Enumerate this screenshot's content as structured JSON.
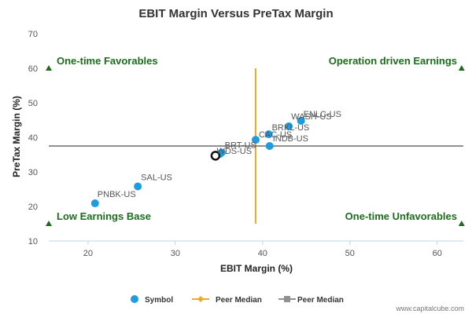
{
  "chart_data": {
    "type": "scatter",
    "title": "EBIT Margin Versus PreTax Margin",
    "xlabel": "EBIT Margin (%)",
    "ylabel": "PreTax Margin (%)",
    "xlim": [
      15.5,
      63
    ],
    "ylim": [
      10,
      70
    ],
    "x_ticks": [
      20,
      30,
      40,
      50,
      60
    ],
    "y_ticks": [
      10,
      20,
      30,
      40,
      50,
      60,
      70
    ],
    "grid": false,
    "points": [
      {
        "label": "PNBK-US",
        "x": 20.8,
        "y": 20.9
      },
      {
        "label": "SAL-US",
        "x": 25.7,
        "y": 25.8
      },
      {
        "label": "BRT-US",
        "x": 35.3,
        "y": 35.6
      },
      {
        "label": "WDS-US",
        "x": 35.1,
        "y": 35.2
      },
      {
        "label": "CAC-US",
        "x": 39.2,
        "y": 39.3
      },
      {
        "label": "BRKL-US",
        "x": 40.7,
        "y": 40.9
      },
      {
        "label": "INDB-US",
        "x": 40.8,
        "y": 37.5
      },
      {
        "label": "WASH-US",
        "x": 43.0,
        "y": 43.2
      },
      {
        "label": "ENLC-US",
        "x": 44.4,
        "y": 44.8
      }
    ],
    "highlight_point": {
      "x": 34.6,
      "y": 34.7
    },
    "peer_median_x": 39.2,
    "peer_median_y": 37.5,
    "quadrant_labels": {
      "top_left": "One-time Favorables",
      "top_right": "Operation driven Earnings",
      "bottom_left": "Low Earnings Base",
      "bottom_right": "One-time Unfavorables"
    },
    "legend": {
      "placement": "bottom",
      "items": [
        "Symbol",
        "Peer Median",
        "Peer Median"
      ]
    },
    "colors": {
      "points": "#1f9be0",
      "median_x": "#f5a623",
      "median_y": "#909090",
      "quadrant": "#1a6e1a",
      "axis": "#b9d7e8"
    }
  },
  "credit": "www.capitalcube.com"
}
